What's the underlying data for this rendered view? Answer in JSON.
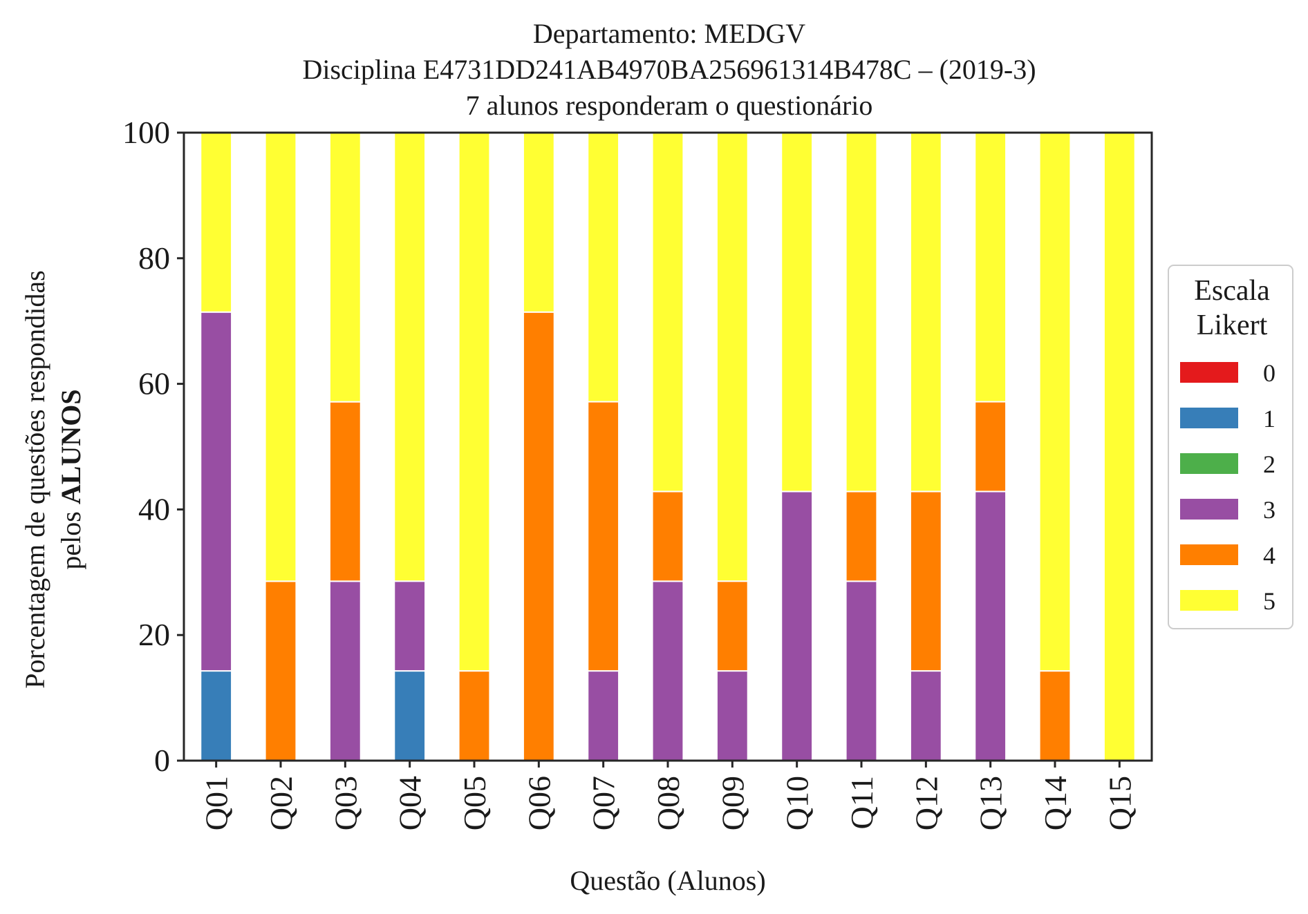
{
  "chart_data": {
    "type": "bar",
    "stacked": true,
    "title_lines": [
      "Departamento: MEDGV",
      "Disciplina E4731DD241AB4970BA256961314B478C – (2019-3)",
      "7 alunos responderam o questionário"
    ],
    "xlabel": "Questão (Alunos)",
    "ylabel_line1": "Porcentagem de questões respondidas",
    "ylabel_line2_prefix": "pelos ",
    "ylabel_line2_bold": "ALUNOS",
    "ylim": [
      0,
      100
    ],
    "yticks": [
      "0",
      "20",
      "40",
      "60",
      "80",
      "100"
    ],
    "grid": false,
    "legend": {
      "title_lines": [
        "Escala",
        "Likert"
      ],
      "placement": "right",
      "entries": [
        "0",
        "1",
        "2",
        "3",
        "4",
        "5"
      ]
    },
    "categories": [
      "Q01",
      "Q02",
      "Q03",
      "Q04",
      "Q05",
      "Q06",
      "Q07",
      "Q08",
      "Q09",
      "Q10",
      "Q11",
      "Q12",
      "Q13",
      "Q14",
      "Q15"
    ],
    "series": [
      {
        "name": "0",
        "color": "#e41a1c",
        "values": [
          0,
          0,
          0,
          0,
          0,
          0,
          0,
          0,
          0,
          0,
          0,
          0,
          0,
          0,
          0
        ]
      },
      {
        "name": "1",
        "color": "#377eb8",
        "values": [
          14.29,
          0,
          0,
          14.29,
          0,
          0,
          0,
          0,
          0,
          0,
          0,
          0,
          0,
          0,
          0
        ]
      },
      {
        "name": "2",
        "color": "#4daf4a",
        "values": [
          0,
          0,
          0,
          0,
          0,
          0,
          0,
          0,
          0,
          0,
          0,
          0,
          0,
          0,
          0
        ]
      },
      {
        "name": "3",
        "color": "#984ea3",
        "values": [
          57.14,
          0,
          28.57,
          14.29,
          0,
          0,
          14.29,
          28.57,
          14.29,
          42.86,
          28.57,
          14.29,
          42.86,
          0,
          0
        ]
      },
      {
        "name": "4",
        "color": "#ff7f00",
        "values": [
          0,
          28.57,
          28.57,
          0,
          14.29,
          71.43,
          42.86,
          14.29,
          14.29,
          0,
          14.29,
          28.57,
          14.29,
          14.29,
          0
        ]
      },
      {
        "name": "5",
        "color": "#ffff33",
        "values": [
          28.57,
          71.43,
          42.86,
          71.43,
          85.71,
          28.57,
          42.86,
          57.14,
          71.43,
          57.14,
          57.14,
          57.14,
          42.86,
          85.71,
          100
        ]
      }
    ]
  }
}
